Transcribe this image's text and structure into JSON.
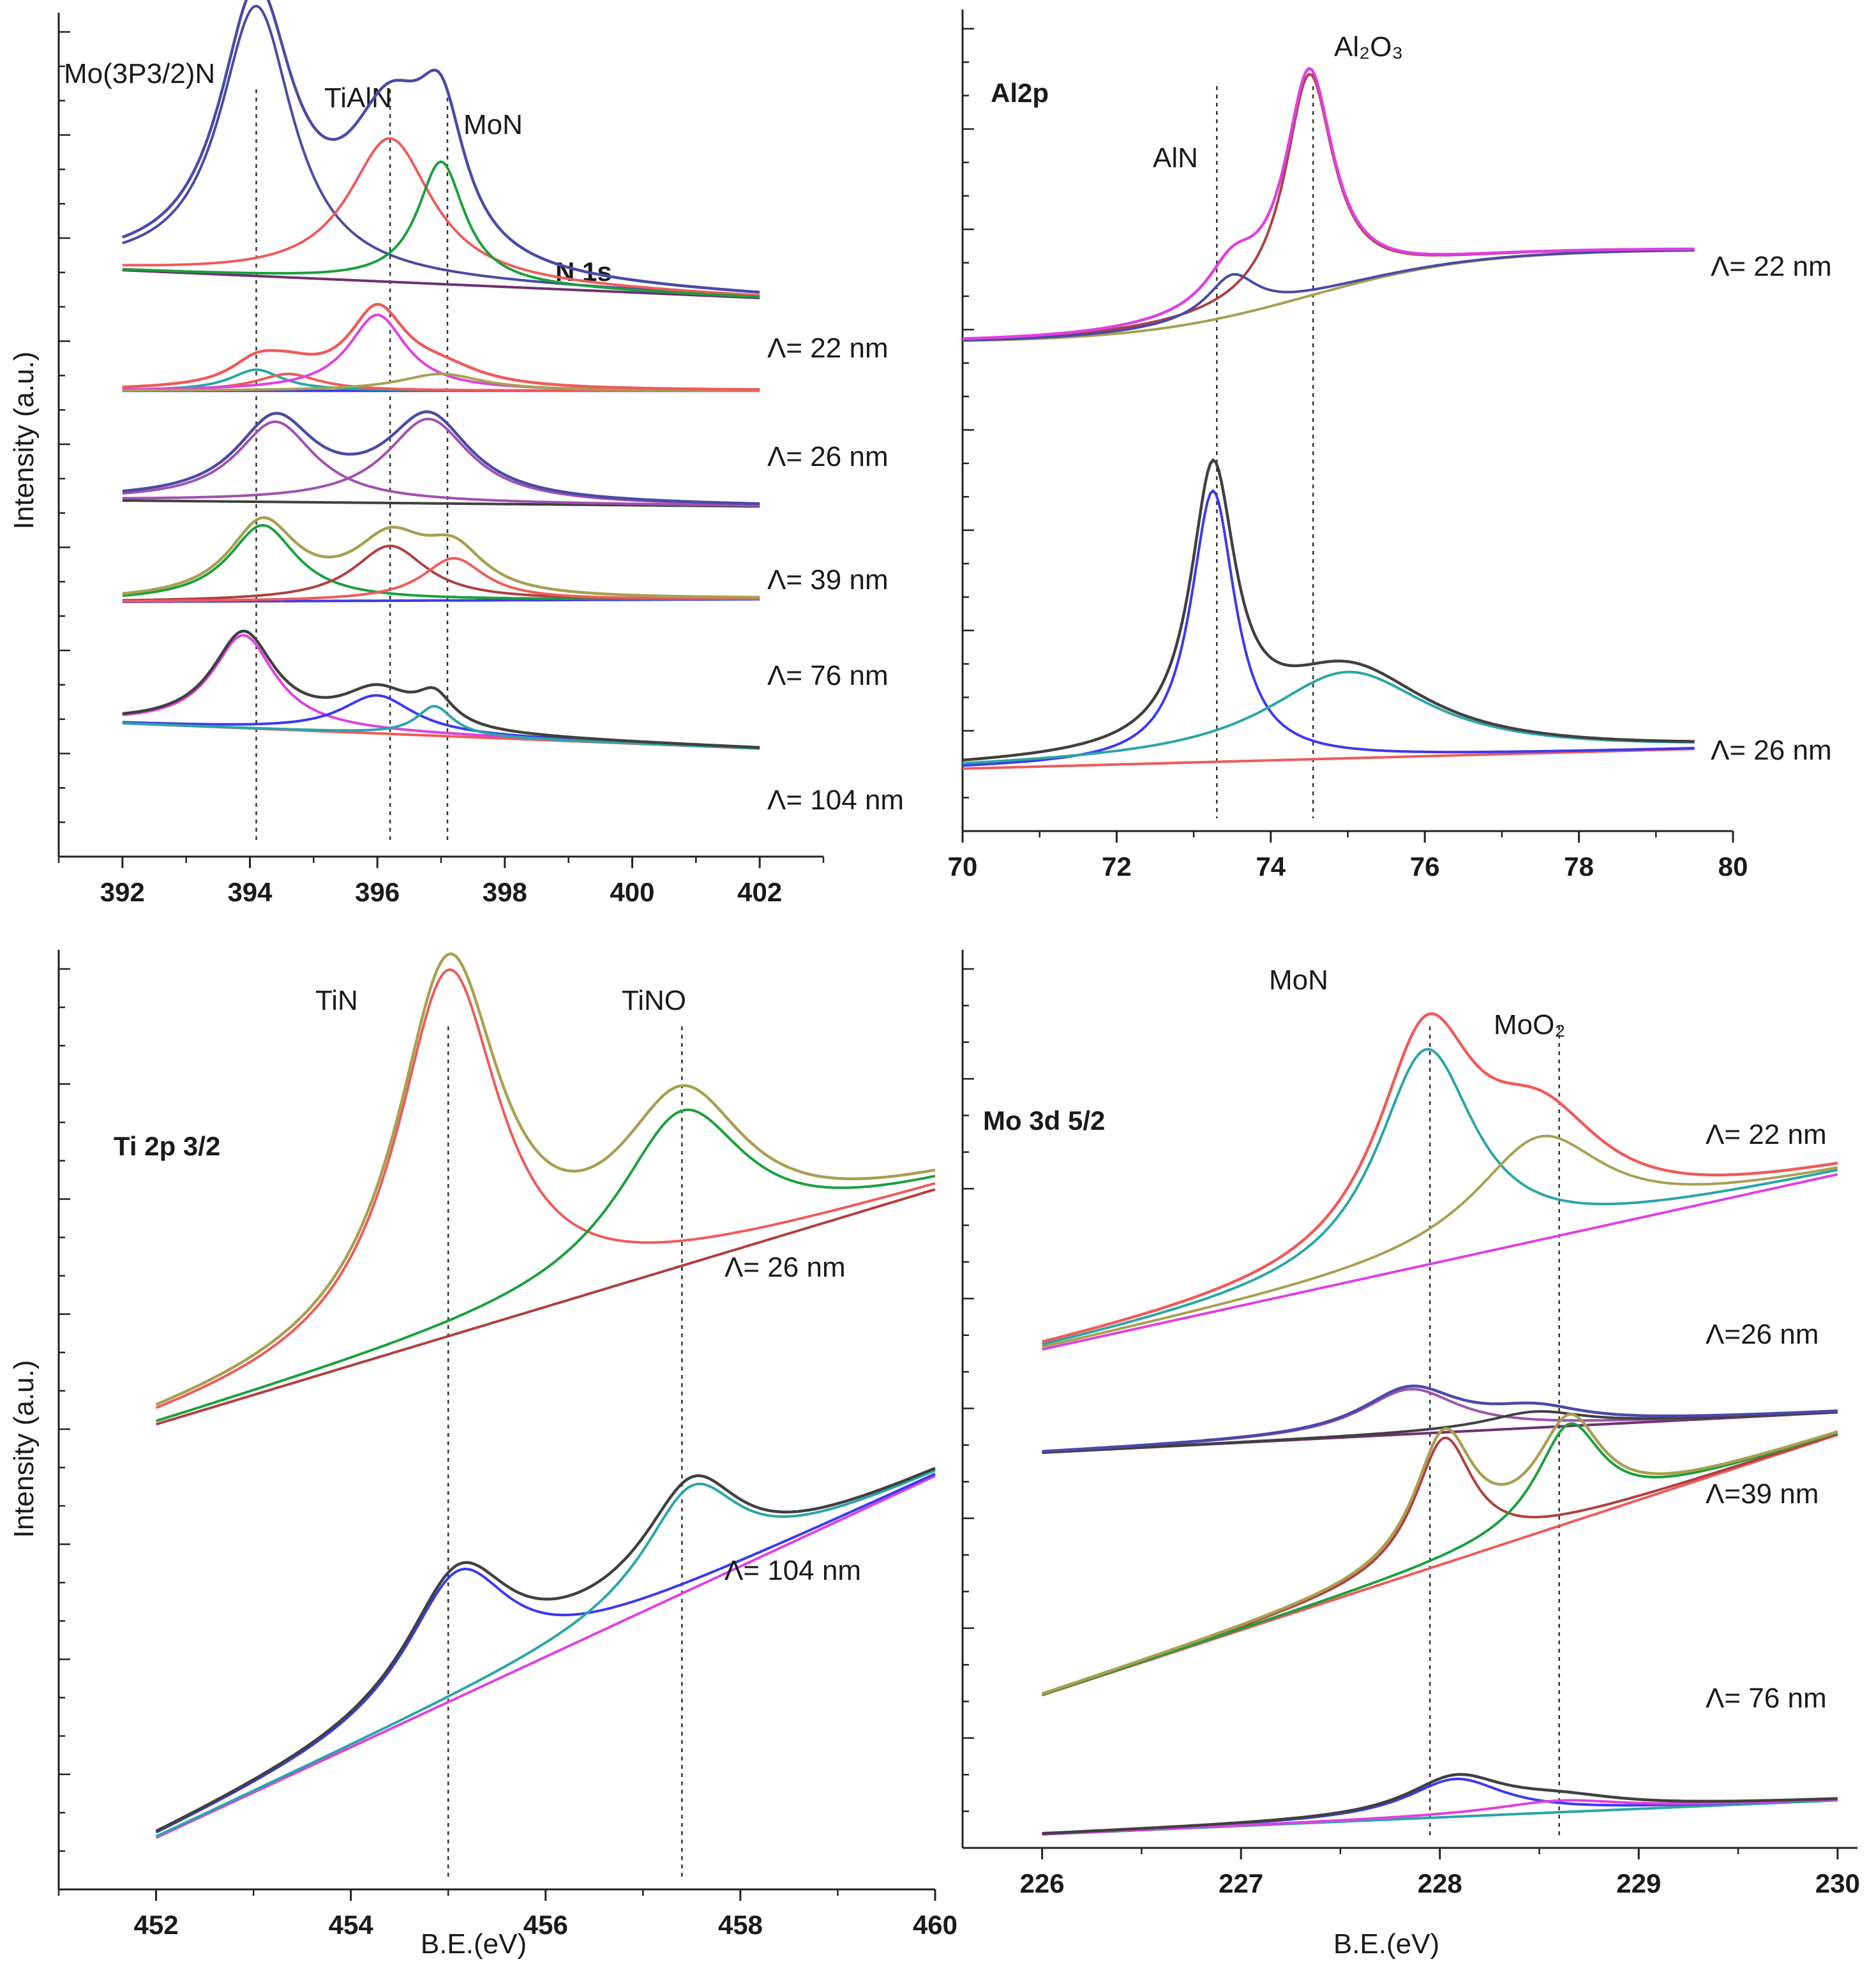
{
  "figure": {
    "ylabel": "Intensity (a.u.)",
    "xlabel": "B.E.(eV)"
  },
  "colors": {
    "navy": "#4a4aa6",
    "red": "#f05a5a",
    "green": "#1aa03c",
    "olive": "#a8a050",
    "cyan": "#2aa6a6",
    "magenta": "#e040e0",
    "blue": "#3a3af0",
    "brown": "#b04040",
    "purple": "#a050b0",
    "black": "#404040",
    "bg": "#703070"
  },
  "chart_data": [
    {
      "id": "n1s",
      "type": "line",
      "title": "N 1s",
      "xlabel": "",
      "ylabel": "Intensity (a.u.)",
      "xlim": [
        391,
        403
      ],
      "ylim": [
        0,
        1
      ],
      "x_range": [
        392,
        402
      ],
      "xticks": [
        "392",
        "394",
        "396",
        "398",
        "400",
        "402"
      ],
      "peak_labels": [
        "Mo(3P3/2)N",
        "TiAlN",
        "MoN"
      ],
      "reference_lines": [
        394.1,
        396.2,
        397.1
      ],
      "series": [
        {
          "name": "Λ= 22 nm",
          "label": "Λ= 22 nm",
          "bg_left": 0.695,
          "bg_right": 0.662,
          "peaks": [
            [
              394.1,
              0.32,
              0.7,
              "navy"
            ],
            [
              396.2,
              0.17,
              0.8,
              "red"
            ],
            [
              397.0,
              0.145,
              0.45,
              "green"
            ]
          ],
          "envelope_color": "navy",
          "bg_color": "bg"
        },
        {
          "name": "Λ= 26 nm",
          "label": "Λ= 26 nm",
          "bg_left": 0.552,
          "bg_right": 0.552,
          "peaks": [
            [
              394.1,
              0.025,
              0.5,
              "cyan"
            ],
            [
              394.6,
              0.02,
              0.6,
              "red"
            ],
            [
              396.0,
              0.09,
              0.55,
              "magenta"
            ],
            [
              397.0,
              0.02,
              0.8,
              "olive"
            ]
          ],
          "envelope_color": "red",
          "bg_color": "blue"
        },
        {
          "name": "Λ= 39 nm",
          "label": "Λ= 39 nm",
          "bg_left": 0.422,
          "bg_right": 0.415,
          "peaks": [
            [
              394.4,
              0.095,
              0.75,
              "purple"
            ],
            [
              396.8,
              0.1,
              0.8,
              "purple"
            ]
          ],
          "envelope_color": "navy",
          "bg_color": "black"
        },
        {
          "name": "Λ= 76 nm",
          "label": "Λ= 76 nm",
          "bg_left": 0.302,
          "bg_right": 0.305,
          "peaks": [
            [
              394.2,
              0.09,
              0.65,
              "green"
            ],
            [
              396.2,
              0.065,
              0.7,
              "brown"
            ],
            [
              397.2,
              0.05,
              0.6,
              "red"
            ]
          ],
          "envelope_color": "olive",
          "bg_color": "blue"
        },
        {
          "name": "Λ= 104 nm",
          "label": "Λ= 104 nm",
          "bg_left": 0.158,
          "bg_right": 0.128,
          "peaks": [
            [
              393.9,
              0.11,
              0.6,
              "magenta"
            ],
            [
              396.0,
              0.045,
              0.7,
              "blue"
            ],
            [
              396.9,
              0.035,
              0.35,
              "cyan"
            ]
          ],
          "envelope_color": "black",
          "bg_color": "red"
        }
      ]
    },
    {
      "id": "al2p",
      "type": "line",
      "title": "Al2p",
      "xlabel": "",
      "ylabel": "",
      "xlim": [
        70,
        80
      ],
      "ylim": [
        0,
        1
      ],
      "x_range": [
        70,
        79.5
      ],
      "xticks": [
        "70",
        "72",
        "74",
        "76",
        "78",
        "80"
      ],
      "peak_labels": [
        "AlN",
        "Al₂O₃"
      ],
      "reference_lines": [
        73.3,
        74.55
      ],
      "series": [
        {
          "name": "Λ= 22 nm",
          "label": "Λ= 22 nm",
          "bg_left": 0.595,
          "bg_right": 0.708,
          "bg_shape": "sigmoid",
          "bg_center": 74.5,
          "bg_width": 1.1,
          "peaks": [
            [
              74.5,
              0.27,
              0.38,
              "brown"
            ],
            [
              73.5,
              0.05,
              0.4,
              "navy"
            ]
          ],
          "envelope_color": "magenta",
          "bg_color": "olive"
        },
        {
          "name": "Λ= 26 nm",
          "label": "Λ= 26 nm",
          "bg_left": 0.076,
          "bg_right": 0.1,
          "peaks": [
            [
              73.25,
              0.33,
              0.35,
              "blue"
            ],
            [
              75.0,
              0.105,
              1.3,
              "cyan"
            ]
          ],
          "envelope_color": "black",
          "bg_color": "red"
        }
      ]
    },
    {
      "id": "ti2p",
      "type": "line",
      "title": "Ti 2p 3/2",
      "xlabel": "B.E.(eV)",
      "ylabel": "Intensity (a.u.)",
      "xlim": [
        451,
        460
      ],
      "ylim": [
        0,
        1
      ],
      "x_range": [
        452,
        460
      ],
      "xticks": [
        "452",
        "454",
        "456",
        "458",
        "460"
      ],
      "peak_labels": [
        "TiN",
        "TiNO"
      ],
      "reference_lines": [
        455.0,
        457.4
      ],
      "series": [
        {
          "name": "Λ= 26 nm",
          "label": "Λ= 26 nm",
          "bg_left": 0.495,
          "bg_right": 0.745,
          "peaks": [
            [
              455.0,
              0.39,
              0.65,
              "red"
            ],
            [
              457.4,
              0.165,
              0.8,
              "green"
            ]
          ],
          "envelope_color": "olive",
          "bg_color": "brown"
        },
        {
          "name": "Λ= 104 nm",
          "label": "Λ= 104 nm",
          "bg_left": 0.055,
          "bg_right": 0.44,
          "peaks": [
            [
              455.1,
              0.135,
              0.65,
              "blue"
            ],
            [
              457.5,
              0.11,
              0.6,
              "cyan"
            ]
          ],
          "envelope_color": "black",
          "bg_color": "magenta"
        }
      ]
    },
    {
      "id": "mo3d",
      "type": "line",
      "title": "Mo 3d 5/2",
      "xlabel": "B.E.(eV)",
      "ylabel": "",
      "xlim": [
        225.6,
        230.1
      ],
      "ylim": [
        0,
        1
      ],
      "x_range": [
        226,
        230
      ],
      "xticks": [
        "226",
        "227",
        "228",
        "229",
        "230"
      ],
      "peak_labels": [
        "MoN",
        "MoO₂"
      ],
      "reference_lines": [
        227.95,
        228.6
      ],
      "series": [
        {
          "name": "Λ= 22 nm",
          "label": "Λ= 22 nm",
          "bg_left": 0.555,
          "bg_right": 0.75,
          "peaks": [
            [
              227.93,
              0.24,
              0.3,
              "cyan"
            ],
            [
              228.5,
              0.115,
              0.4,
              "olive"
            ]
          ],
          "envelope_color": "red",
          "bg_color": "magenta"
        },
        {
          "name": "Λ=26 nm",
          "label": "Λ=26 nm",
          "bg_left": 0.44,
          "bg_right": 0.485,
          "peaks": [
            [
              227.85,
              0.05,
              0.3,
              "purple"
            ],
            [
              228.48,
              0.018,
              0.3,
              "black"
            ]
          ],
          "envelope_color": "navy",
          "bg_color": "bg"
        },
        {
          "name": "Λ=39 nm",
          "label": "Λ=39 nm",
          "bg_left": 0.17,
          "bg_right": 0.46,
          "peaks": [
            [
              228.02,
              0.14,
              0.18,
              "brown"
            ],
            [
              228.65,
              0.11,
              0.2,
              "green"
            ]
          ],
          "envelope_color": "olive",
          "bg_color": "red"
        },
        {
          "name": "Λ= 76 nm",
          "label": "Λ= 76 nm",
          "bg_left": 0.015,
          "bg_right": 0.053,
          "peaks": [
            [
              228.08,
              0.042,
              0.3,
              "blue"
            ],
            [
              228.6,
              0.013,
              0.4,
              "magenta"
            ]
          ],
          "envelope_color": "black",
          "bg_color": "cyan"
        }
      ]
    }
  ]
}
